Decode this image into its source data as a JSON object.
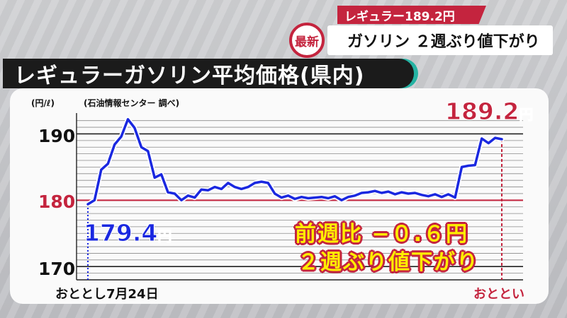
{
  "headline": {
    "price_tag": "レギュラー189.2円",
    "badge": "最新",
    "main": "ガソリン ２週ぶり値下がり"
  },
  "title": "レギュラーガソリン平均価格(県内)",
  "unit": "(円/ℓ)",
  "source": "(石油情報センター 調べ)",
  "labels": {
    "start_value": "179.4",
    "end_value": "189.2",
    "yen": "円",
    "x_start": "おととし7月24日",
    "x_end": "おととい",
    "note_line1": "前週比 −０.６円",
    "note_line2": "２週ぶり値下がり"
  },
  "colors": {
    "line": "#1a28e0",
    "reference": "#c4243e",
    "accent": "#25b3a3"
  },
  "chart_data": {
    "type": "line",
    "title": "レギュラーガソリン平均価格(県内)",
    "ylabel": "(円/ℓ)",
    "ylim": [
      168,
      192.5
    ],
    "yticks": [
      170,
      180,
      190
    ],
    "reference_line": 180,
    "grid": true,
    "series": [
      {
        "values": [
          179.4,
          180.0,
          184.6,
          185.5,
          188.4,
          189.6,
          192.2,
          190.9,
          188.0,
          187.4,
          183.4,
          183.9,
          181.2,
          181.0,
          180.0,
          180.7,
          180.4,
          181.6,
          181.5,
          182.0,
          181.7,
          182.6,
          182.0,
          181.7,
          182.0,
          182.6,
          182.8,
          182.6,
          181.0,
          180.4,
          180.7,
          180.2,
          180.5,
          180.3,
          180.4,
          180.5,
          180.3,
          180.6,
          180.0,
          180.5,
          180.7,
          181.1,
          181.2,
          181.4,
          181.1,
          181.3,
          180.9,
          181.2,
          181.0,
          181.1,
          180.8,
          180.6,
          180.9,
          180.5,
          180.9,
          180.4,
          185.0,
          185.2,
          185.3,
          189.3,
          188.6,
          189.4,
          189.2
        ]
      }
    ]
  }
}
